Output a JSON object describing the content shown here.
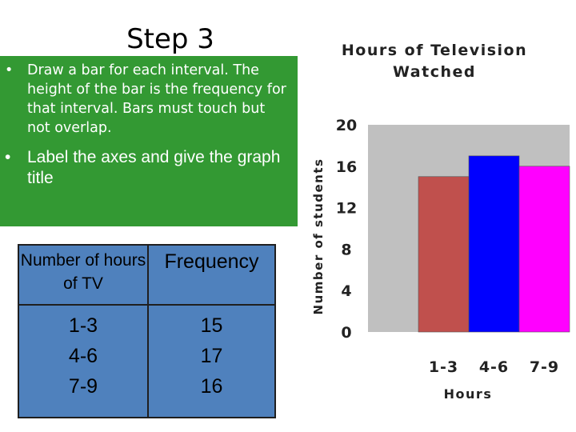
{
  "slide": {
    "title": "Step 3",
    "bullets": [
      "Draw a bar for each interval. The height of the bar is the frequency for that interval. Bars must touch but not overlap.",
      "Label the axes and give the graph title"
    ],
    "colors": {
      "panel": "#339933",
      "panel_text": "#ffffff",
      "table_fill": "#4f81bd"
    }
  },
  "table": {
    "headers": [
      "Number of hours of TV",
      "Frequency"
    ],
    "rows": [
      {
        "hours": "1-3",
        "frequency": "15"
      },
      {
        "hours": "4-6",
        "frequency": "17"
      },
      {
        "hours": "7-9",
        "frequency": "16"
      }
    ]
  },
  "chart_data": {
    "type": "bar",
    "title": "Hours of Television Watched",
    "xlabel": "Hours",
    "ylabel": "Number of students",
    "categories": [
      "1-3",
      "4-6",
      "7-9"
    ],
    "values": [
      15,
      17,
      16
    ],
    "bar_colors": [
      "#c0504d",
      "#0000ff",
      "#ff00ff"
    ],
    "ylim": [
      0,
      20
    ],
    "yticks": [
      0,
      4,
      8,
      12,
      16,
      20
    ],
    "grid": false,
    "legend": false,
    "plot_background": "#c0c0c0"
  }
}
